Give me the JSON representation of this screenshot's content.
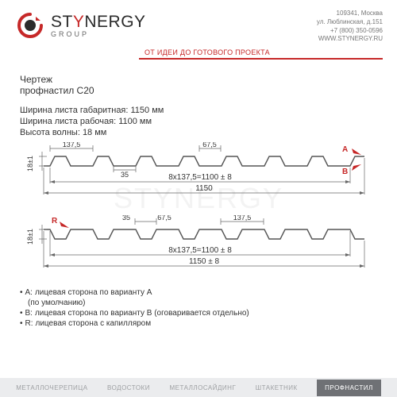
{
  "brand": {
    "name_part1": "ST",
    "name_part2": "Y",
    "name_part3": "NERGY",
    "sub": "GROUP",
    "tagline": "ОТ ИДЕИ ДО ГОТОВОГО ПРОЕКТА",
    "color_red": "#c62828",
    "color_dark": "#2b2b2b",
    "color_gray": "#777777"
  },
  "contact": {
    "line1": "109341, Москва",
    "line2": "ул. Люблинская, д.151",
    "line3": "+7 (800) 350-0596",
    "line4": "WWW.STYNERGY.RU"
  },
  "drawing": {
    "title": "Чертеж",
    "subtitle": "профнастил С20",
    "specs": [
      "Ширина листа габаритная: 1150 мм",
      "Ширина листа рабочая: 1100 мм",
      "Высота волны: 18 мм"
    ]
  },
  "profile_top": {
    "labels": {
      "pitch": "137,5",
      "half": "67,5",
      "flat": "35",
      "height": "18±1",
      "working": "8x137,5=1100 ± 8",
      "overall": "1150",
      "marker_a": "A",
      "marker_b": "B"
    },
    "arrow_color": "#c62828",
    "line_color": "#555555",
    "dim_color": "#666666",
    "text_color": "#333333",
    "fontsize": 9
  },
  "profile_bottom": {
    "labels": {
      "pitch": "137,5",
      "half": "67,5",
      "flat": "35",
      "height": "18±1",
      "working": "8x137,5=1100 ± 8",
      "overall": "1150 ± 8",
      "marker_r": "R"
    },
    "arrow_color": "#c62828",
    "line_color": "#555555",
    "dim_color": "#666666",
    "text_color": "#333333",
    "fontsize": 9
  },
  "legend": {
    "items": [
      {
        "key": "A:",
        "text": "лицевая сторона по варианту A",
        "sub": "(по умолчанию)"
      },
      {
        "key": "B:",
        "text": "лицевая сторона по варианту B (оговаривается отдельно)",
        "sub": ""
      },
      {
        "key": "R:",
        "text": "лицевая сторона с капилляром",
        "sub": ""
      }
    ],
    "bullet": "•"
  },
  "footer": {
    "items": [
      "МЕТАЛЛОЧЕРЕПИЦА",
      "ВОДОСТОКИ",
      "МЕТАЛЛОСАЙДИНГ",
      "ШТАКЕТНИК",
      "ПРОФНАСТИЛ"
    ],
    "bg": "#ebecee",
    "active_bg": "#6f7175",
    "active_color": "#ffffff",
    "active_index": 4
  },
  "watermark": "STYNERGY"
}
